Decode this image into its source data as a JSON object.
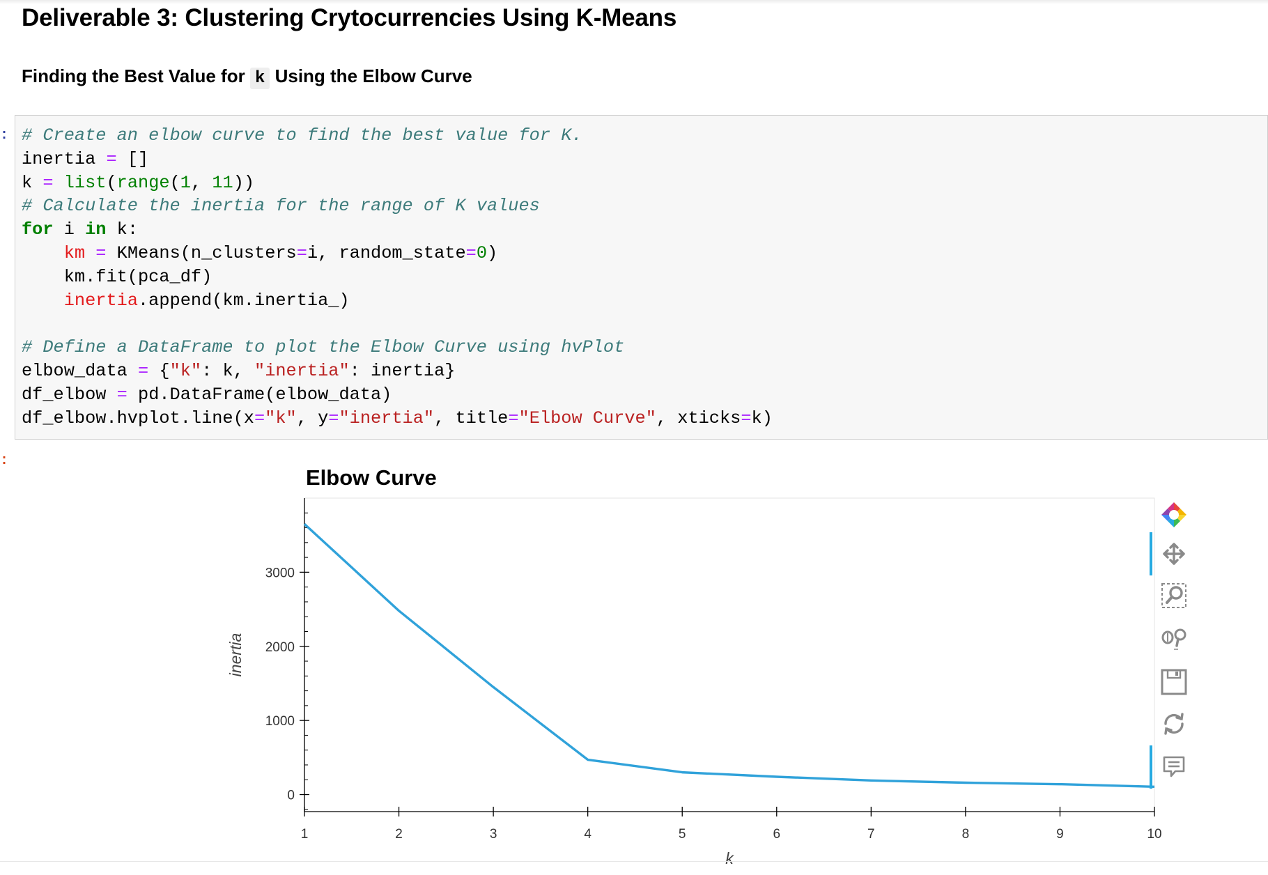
{
  "notebook": {
    "heading": "Deliverable 3: Clustering Crytocurrencies Using K-Means",
    "subheading_before": "Finding the Best Value for",
    "subheading_code": "k",
    "subheading_after": "Using the Elbow Curve",
    "in_prompt": ":",
    "out_prompt": ":"
  },
  "code_cell": {
    "lines": [
      "# Create an elbow curve to find the best value for K.",
      "inertia = []",
      "k = list(range(1, 11))",
      "# Calculate the inertia for the range of K values",
      "for i in k:",
      "    km = KMeans(n_clusters=i, random_state=0)",
      "    km.fit(pca_df)",
      "    inertia.append(km.inertia_)",
      "",
      "# Define a DataFrame to plot the Elbow Curve using hvPlot",
      "elbow_data = {\"k\": k, \"inertia\": inertia}",
      "df_elbow = pd.DataFrame(elbow_data)",
      "df_elbow.hvplot.line(x=\"k\", y=\"inertia\", title=\"Elbow Curve\", xticks=k)"
    ]
  },
  "chart_data": {
    "type": "line",
    "title": "Elbow Curve",
    "xlabel": "k",
    "ylabel": "inertia",
    "x": [
      1,
      2,
      3,
      4,
      5,
      6,
      7,
      8,
      9,
      10
    ],
    "series": [
      {
        "values": [
          3650,
          2480,
          1450,
          470,
          300,
          240,
          190,
          160,
          140,
          105
        ]
      }
    ],
    "x_ticks": [
      "1",
      "2",
      "3",
      "4",
      "5",
      "6",
      "7",
      "8",
      "9",
      "10"
    ],
    "y_ticks": [
      "0",
      "1000",
      "2000",
      "3000"
    ],
    "xlim": [
      1,
      10
    ],
    "ylim": [
      -230,
      4000
    ],
    "grid": false,
    "line_color": "#30a2da"
  },
  "toolbar": {
    "tools": [
      {
        "name": "bokeh-logo-icon",
        "active": false
      },
      {
        "name": "pan-icon",
        "active": true
      },
      {
        "name": "box-zoom-icon",
        "active": false
      },
      {
        "name": "wheel-zoom-icon",
        "active": false
      },
      {
        "name": "save-icon",
        "active": false
      },
      {
        "name": "reset-icon",
        "active": false
      },
      {
        "name": "hover-icon",
        "active": true
      }
    ],
    "accent_color": "#26aae1"
  }
}
